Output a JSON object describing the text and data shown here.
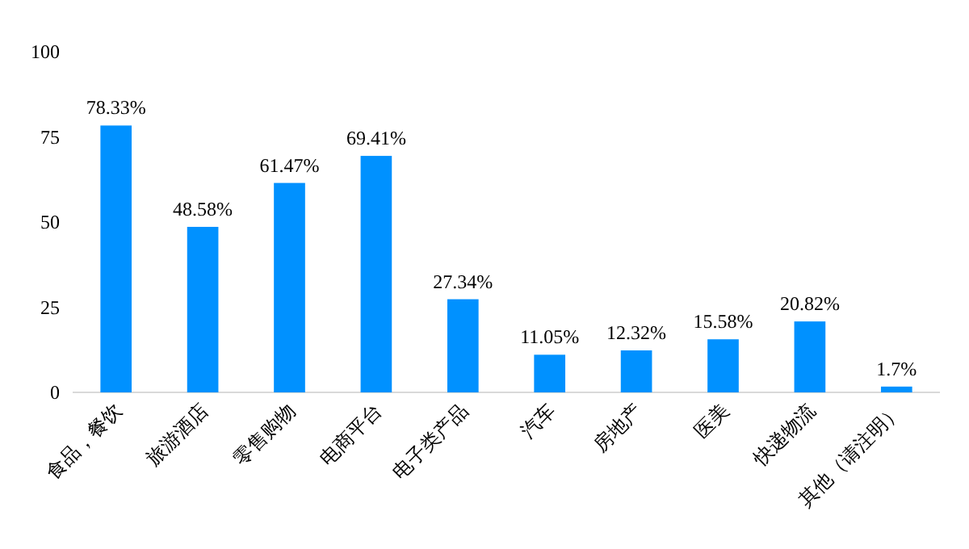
{
  "chart_data": {
    "type": "bar",
    "categories": [
      "食品，餐饮",
      "旅游酒店",
      "零售购物",
      "电商平台",
      "电子类产品",
      "汽车",
      "房地产",
      "医美",
      "快递物流",
      "其他（请注明）"
    ],
    "values": [
      78.33,
      48.58,
      61.47,
      69.41,
      27.34,
      11.05,
      12.32,
      15.58,
      20.82,
      1.7
    ],
    "value_labels": [
      "78.33%",
      "48.58%",
      "61.47%",
      "69.41%",
      "27.34%",
      "11.05%",
      "12.32%",
      "15.58%",
      "20.82%",
      "1.7%"
    ],
    "color": "#0091ff",
    "ylim": [
      0,
      100
    ],
    "yticks": [
      0,
      25,
      50,
      75,
      100
    ]
  }
}
